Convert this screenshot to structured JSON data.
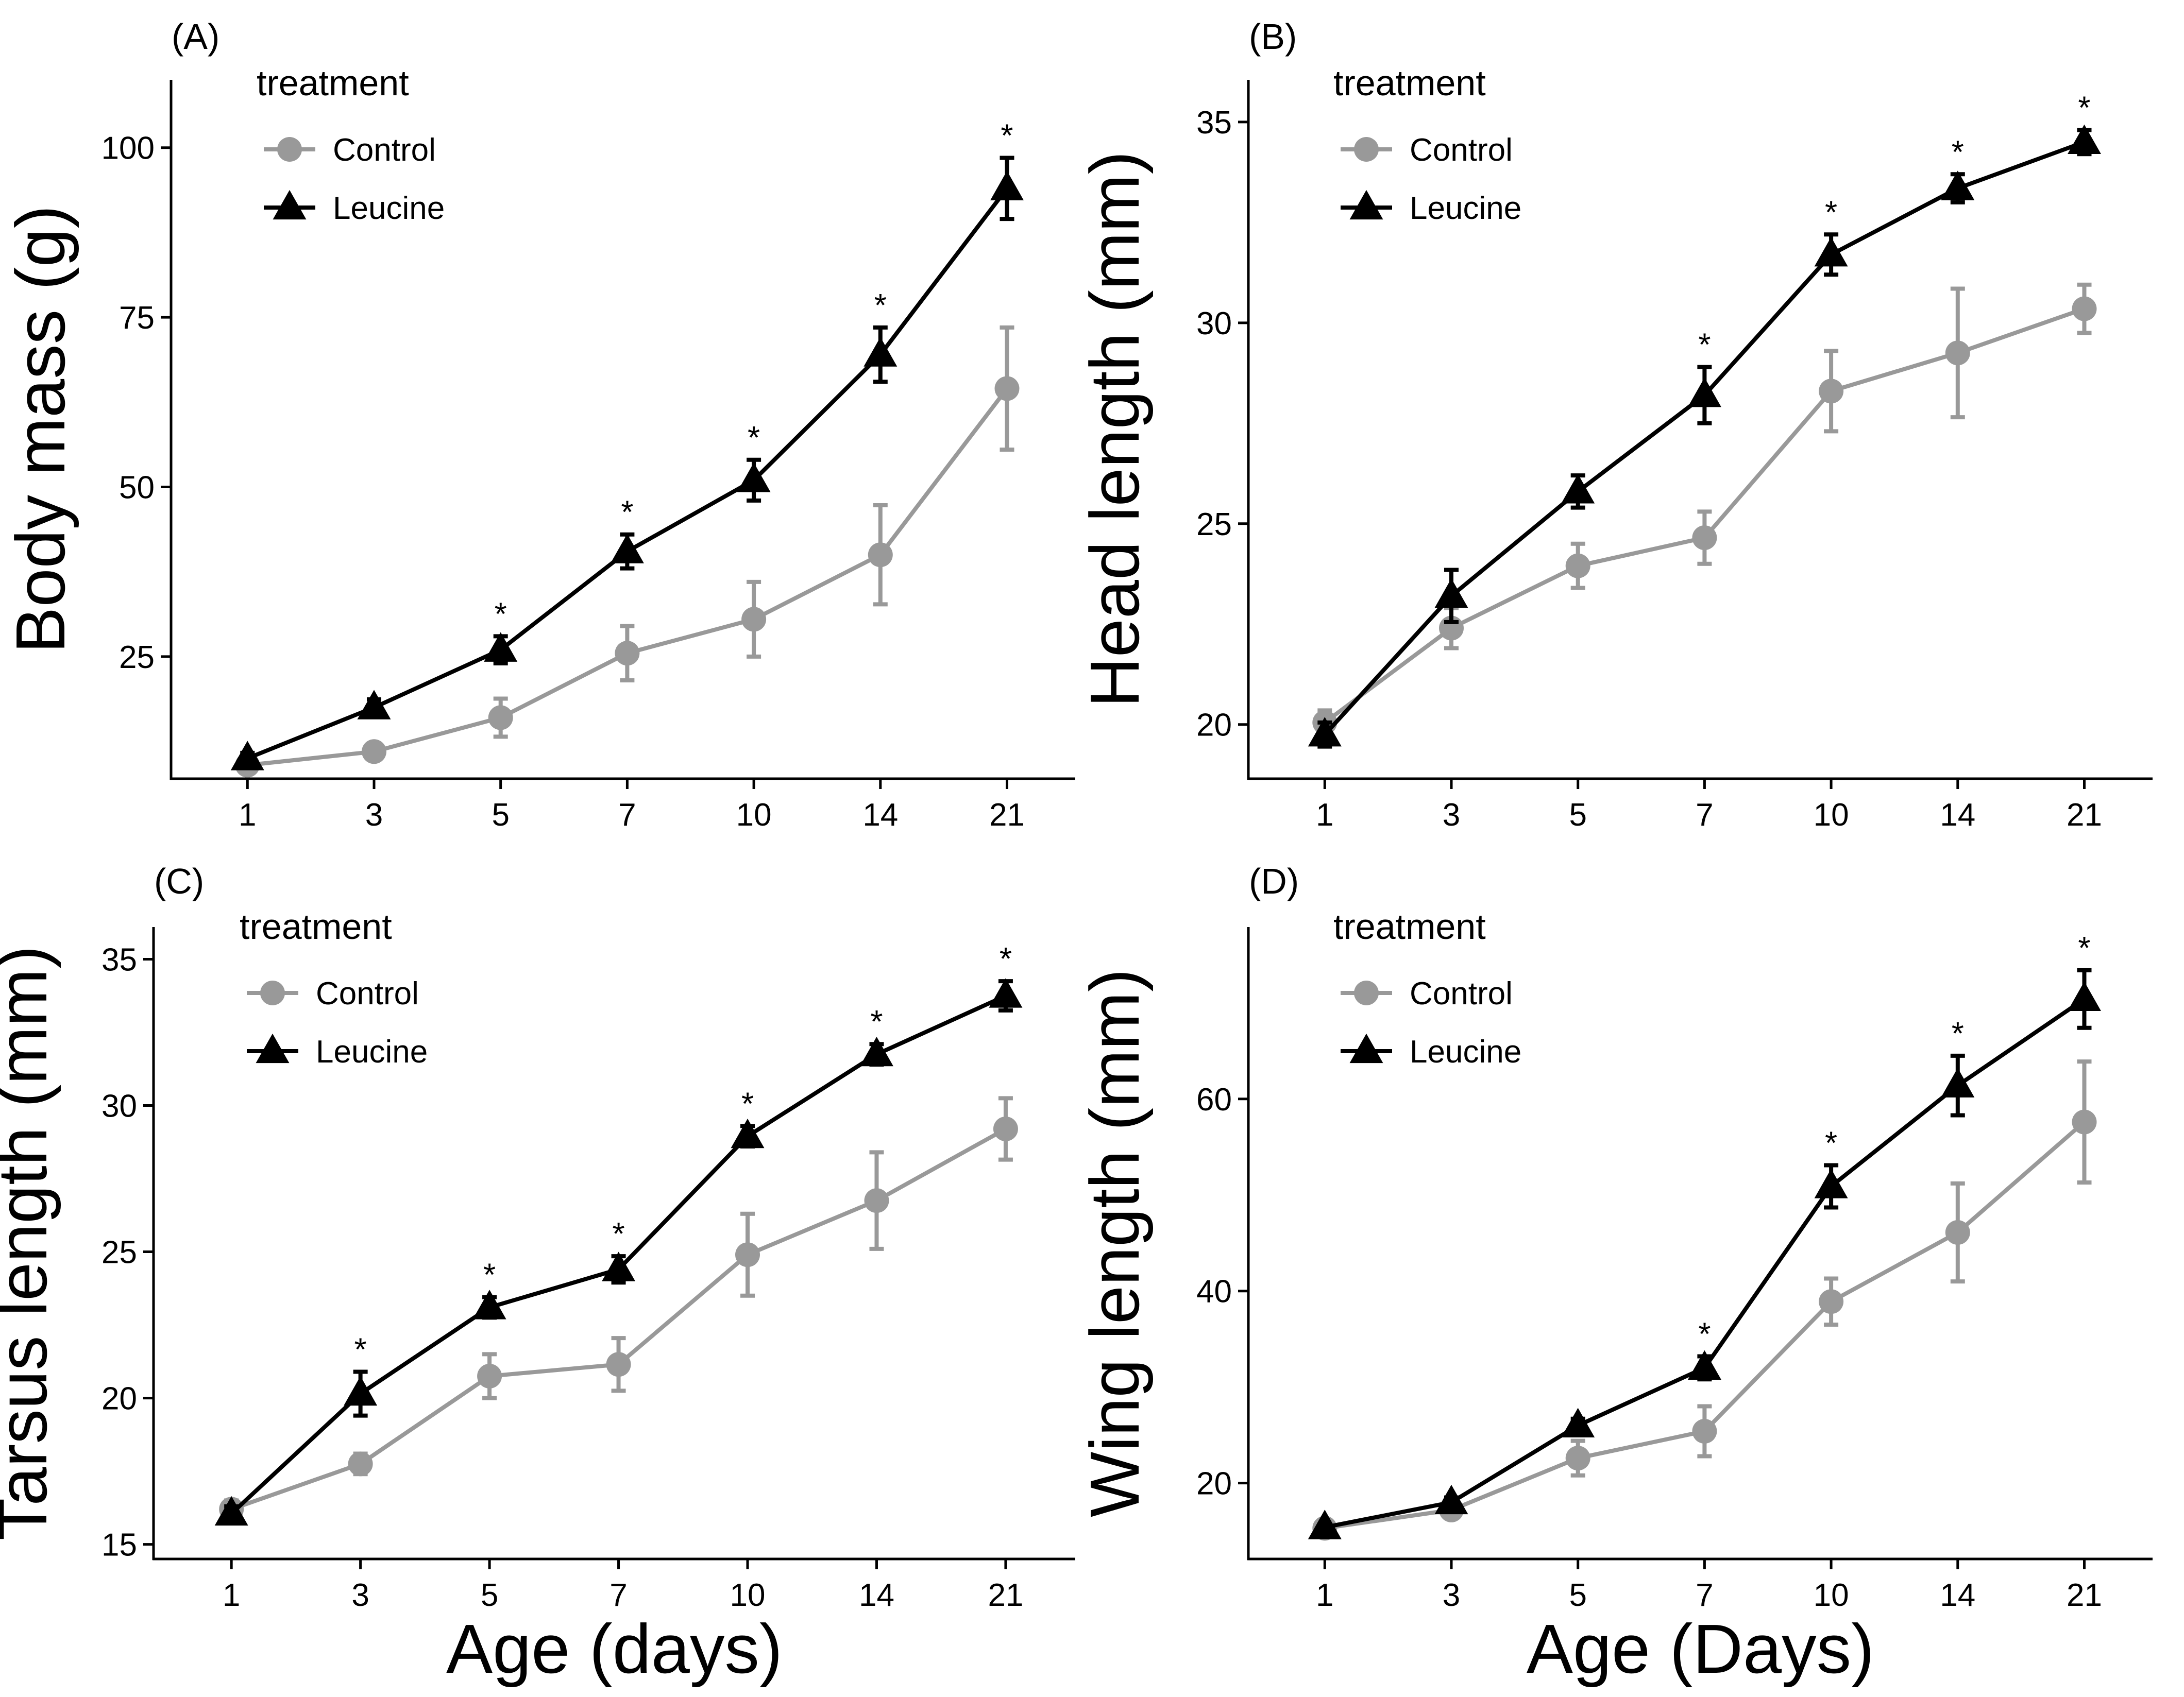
{
  "colors": {
    "control": "#999999",
    "leucine": "#000000",
    "axis": "#000000"
  },
  "chart_data": [
    {
      "type": "line",
      "panel_label": "(A)",
      "ylabel": "Body mass (g)",
      "xlabel": "",
      "categories": [
        "1",
        "3",
        "5",
        "7",
        "10",
        "14",
        "21"
      ],
      "ylim": [
        7,
        110
      ],
      "yticks": [
        25,
        50,
        75,
        100
      ],
      "legend": {
        "title": "treatment",
        "position": "top-left"
      },
      "series": [
        {
          "name": "Control",
          "marker": "circle",
          "values": [
            9,
            11,
            16,
            25.5,
            30.5,
            40,
            64.5
          ],
          "err": [
            0.8,
            1,
            2.8,
            4,
            5.5,
            7.3,
            9
          ]
        },
        {
          "name": "Leucine",
          "marker": "triangle",
          "values": [
            10,
            17.5,
            26,
            40.5,
            51,
            69.5,
            94
          ],
          "err": [
            0.8,
            1.2,
            2,
            2.5,
            3,
            4,
            4.5
          ]
        }
      ],
      "significance": [
        "",
        "",
        "*",
        "*",
        "*",
        "*",
        "*"
      ]
    },
    {
      "type": "line",
      "panel_label": "(B)",
      "ylabel": "Head length (mm)",
      "xlabel": "",
      "categories": [
        "1",
        "3",
        "5",
        "7",
        "10",
        "14",
        "21"
      ],
      "ylim": [
        18.65,
        36.05
      ],
      "yticks": [
        20,
        25,
        30,
        35
      ],
      "legend": {
        "title": "treatment",
        "position": "top-left"
      },
      "series": [
        {
          "name": "Control",
          "marker": "circle",
          "values": [
            20.05,
            22.4,
            23.95,
            24.65,
            28.3,
            29.25,
            30.35
          ],
          "err": [
            0.3,
            0.5,
            0.55,
            0.65,
            1,
            1.6,
            0.6
          ]
        },
        {
          "name": "Leucine",
          "marker": "triangle",
          "values": [
            19.75,
            23.2,
            25.8,
            28.2,
            31.7,
            33.35,
            34.5
          ],
          "err": [
            0.3,
            0.65,
            0.4,
            0.7,
            0.5,
            0.35,
            0.3
          ]
        }
      ],
      "significance": [
        "",
        "",
        "",
        "*",
        "*",
        "*",
        "*"
      ]
    },
    {
      "type": "line",
      "panel_label": "(C)",
      "ylabel": "Tarsus length (mm)",
      "xlabel": "Age (days)",
      "categories": [
        "1",
        "3",
        "5",
        "7",
        "10",
        "14",
        "21"
      ],
      "ylim": [
        14.5,
        36.1
      ],
      "yticks": [
        15,
        20,
        25,
        30,
        35
      ],
      "legend": {
        "title": "treatment",
        "position": "top-left"
      },
      "series": [
        {
          "name": "Control",
          "marker": "circle",
          "values": [
            16.2,
            17.75,
            20.75,
            21.15,
            24.9,
            26.75,
            29.2
          ],
          "err": [
            0.3,
            0.35,
            0.75,
            0.9,
            1.4,
            1.65,
            1.05
          ]
        },
        {
          "name": "Leucine",
          "marker": "triangle",
          "values": [
            16.05,
            20.15,
            23.1,
            24.4,
            28.95,
            31.75,
            33.75
          ],
          "err": [
            0.25,
            0.75,
            0.35,
            0.45,
            0.35,
            0.35,
            0.5
          ]
        }
      ],
      "significance": [
        "",
        "*",
        "*",
        "*",
        "*",
        "*",
        "*"
      ]
    },
    {
      "type": "line",
      "panel_label": "(D)",
      "ylabel": "Wing length (mm)",
      "xlabel": "Age (Days)",
      "categories": [
        "1",
        "3",
        "5",
        "7",
        "10",
        "14",
        "21"
      ],
      "ylim": [
        12.1,
        77.9
      ],
      "yticks": [
        20,
        40,
        60
      ],
      "legend": {
        "title": "treatment",
        "position": "top-left"
      },
      "series": [
        {
          "name": "Control",
          "marker": "circle",
          "values": [
            15.3,
            17.2,
            22.6,
            25.4,
            38.9,
            46.1,
            57.6
          ],
          "err": [
            0.3,
            0.4,
            1.8,
            2.6,
            2.4,
            5.1,
            6.3
          ]
        },
        {
          "name": "Leucine",
          "marker": "triangle",
          "values": [
            15.4,
            18,
            26,
            32,
            50.9,
            61.4,
            70.4
          ],
          "err": [
            0.3,
            0.5,
            0.7,
            1.2,
            2.2,
            3.1,
            3
          ]
        }
      ],
      "significance": [
        "",
        "",
        "",
        "*",
        "*",
        "*",
        "*"
      ]
    }
  ]
}
